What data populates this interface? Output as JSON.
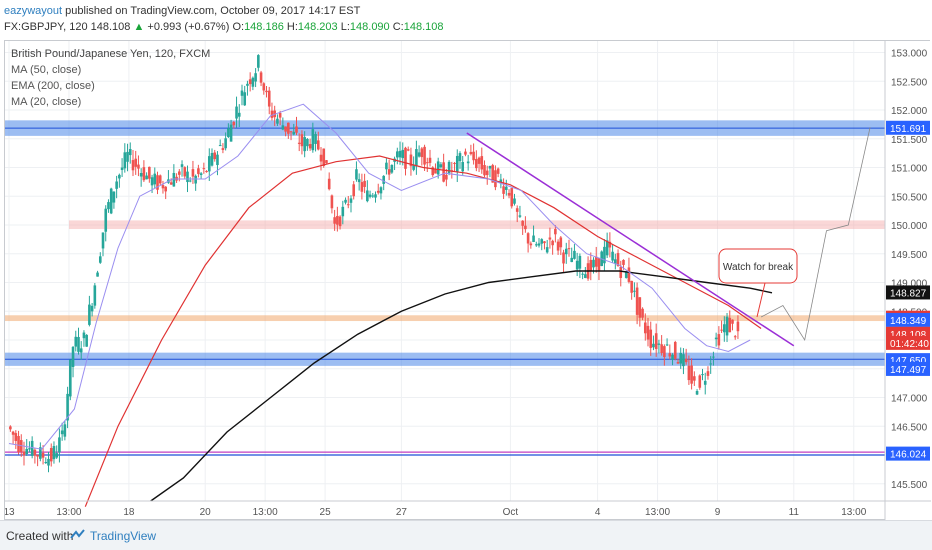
{
  "header": {
    "author": "eazywayout",
    "published": "published on TradingView.com, October 09, 2017 14:17 EST",
    "symbol": "FX:GBPJPY, 120",
    "last": "148.108",
    "change_arrow": "▲",
    "change": "+0.993 (+0.67%)",
    "open_label": "O:",
    "open": "148.186",
    "high_label": "H:",
    "high": "148.203",
    "low_label": "L:",
    "low": "148.090",
    "close_label": "C:",
    "close": "148.108"
  },
  "legend": {
    "title": "British Pound/Japanese Yen, 120, FXCM",
    "ma50": "MA (50, close)",
    "ema200": "EMA (200, close)",
    "ma20": "MA (20, close)"
  },
  "annotation": "Watch for break",
  "footer": {
    "created": "Created with",
    "brand": "TradingView"
  },
  "colors": {
    "up": "#26a69a",
    "down": "#ef5350",
    "ma50": "#e03232",
    "ema200": "#111111",
    "ma20": "#9a8ef0",
    "trendline": "#9b2fd6",
    "blue_zone": "#4a86e8",
    "pink_zone": "#f4a7a7",
    "orange_zone": "#f0a060",
    "purple_line": "#c23fc2"
  },
  "chart_data": {
    "type": "candlestick",
    "title": "British Pound/Japanese Yen, 120, FXCM",
    "ylim": [
      145.2,
      153.2
    ],
    "y_ticks": [
      "145.500",
      "146.000",
      "146.500",
      "147.000",
      "147.500",
      "148.000",
      "148.500",
      "149.000",
      "149.500",
      "150.000",
      "150.500",
      "151.000",
      "151.500",
      "152.000",
      "152.500",
      "153.000"
    ],
    "x_ticks": [
      {
        "label": "13",
        "x": 0
      },
      {
        "label": "13:00",
        "x": 5.5
      },
      {
        "label": "18",
        "x": 11
      },
      {
        "label": "20",
        "x": 18
      },
      {
        "label": "13:00",
        "x": 23.5
      },
      {
        "label": "25",
        "x": 29
      },
      {
        "label": "27",
        "x": 36
      },
      {
        "label": "Oct",
        "x": 46
      },
      {
        "label": "4",
        "x": 54
      },
      {
        "label": "13:00",
        "x": 59.5
      },
      {
        "label": "9",
        "x": 65
      },
      {
        "label": "11",
        "x": 72
      },
      {
        "label": "13:00",
        "x": 77.5
      }
    ],
    "price_labels": [
      {
        "value": "151.691",
        "y": 151.691,
        "color": "#2962ff"
      },
      {
        "value": "148.827",
        "y": 148.827,
        "color": "#111111"
      },
      {
        "value": "148.388",
        "y": 148.388,
        "color": "#e53935"
      },
      {
        "value": "148.349",
        "y": 148.349,
        "color": "#2962ff"
      },
      {
        "value": "148.108",
        "y": 148.108,
        "color": "#e53935"
      },
      {
        "value": "01:42:40",
        "y": 147.95,
        "color": "#e53935"
      },
      {
        "value": "147.650",
        "y": 147.65,
        "color": "#2962ff"
      },
      {
        "value": "147.497",
        "y": 147.497,
        "color": "#2962ff"
      },
      {
        "value": "146.024",
        "y": 146.024,
        "color": "#2962ff"
      }
    ],
    "zones": [
      {
        "from": 151.55,
        "to": 151.82,
        "kind": "blue"
      },
      {
        "from": 147.55,
        "to": 147.78,
        "kind": "blue"
      },
      {
        "from": 149.93,
        "to": 150.08,
        "kind": "pink"
      },
      {
        "from": 148.33,
        "to": 148.43,
        "kind": "orange"
      }
    ],
    "hlines": [
      {
        "y": 146.05,
        "kind": "purple"
      },
      {
        "y": 146.0,
        "kind": "blue"
      }
    ],
    "close_path": [
      [
        0,
        146.5
      ],
      [
        1,
        146.2
      ],
      [
        2,
        146.1
      ],
      [
        3,
        146.0
      ],
      [
        4,
        145.95
      ],
      [
        5,
        146.3
      ],
      [
        6,
        147.9
      ],
      [
        7,
        148.0
      ],
      [
        8,
        149.0
      ],
      [
        9,
        150.2
      ],
      [
        10,
        150.8
      ],
      [
        11,
        151.2
      ],
      [
        12,
        151.0
      ],
      [
        13,
        150.8
      ],
      [
        14,
        150.7
      ],
      [
        15,
        150.8
      ],
      [
        16,
        150.9
      ],
      [
        17,
        150.8
      ],
      [
        18,
        150.9
      ],
      [
        19,
        151.2
      ],
      [
        20,
        151.5
      ],
      [
        21,
        152.0
      ],
      [
        22,
        152.5
      ],
      [
        23,
        152.8
      ],
      [
        24,
        152.0
      ],
      [
        25,
        151.8
      ],
      [
        26,
        151.6
      ],
      [
        27,
        151.4
      ],
      [
        28,
        151.5
      ],
      [
        29,
        151.2
      ],
      [
        30,
        150.0
      ],
      [
        31,
        150.3
      ],
      [
        32,
        150.8
      ],
      [
        33,
        150.5
      ],
      [
        34,
        150.7
      ],
      [
        35,
        151.0
      ],
      [
        36,
        151.2
      ],
      [
        37,
        151.1
      ],
      [
        38,
        151.3
      ],
      [
        39,
        151.0
      ],
      [
        40,
        150.9
      ],
      [
        41,
        151.0
      ],
      [
        42,
        151.2
      ],
      [
        43,
        151.1
      ],
      [
        44,
        150.9
      ],
      [
        45,
        150.8
      ],
      [
        46,
        150.6
      ],
      [
        47,
        150.0
      ],
      [
        48,
        149.7
      ],
      [
        49,
        149.6
      ],
      [
        50,
        149.8
      ],
      [
        51,
        149.5
      ],
      [
        52,
        149.4
      ],
      [
        53,
        149.2
      ],
      [
        54,
        149.3
      ],
      [
        55,
        149.6
      ],
      [
        56,
        149.3
      ],
      [
        57,
        149.1
      ],
      [
        58,
        148.4
      ],
      [
        59,
        148.0
      ],
      [
        60,
        147.9
      ],
      [
        61,
        147.8
      ],
      [
        62,
        147.6
      ],
      [
        63,
        147.2
      ],
      [
        64,
        147.4
      ],
      [
        65,
        148.0
      ],
      [
        66,
        148.3
      ],
      [
        67,
        148.1
      ]
    ],
    "series": [
      {
        "name": "MA (50, close)",
        "points": [
          [
            7,
            145.1
          ],
          [
            10,
            146.5
          ],
          [
            14,
            148.0
          ],
          [
            18,
            149.3
          ],
          [
            22,
            150.3
          ],
          [
            26,
            150.9
          ],
          [
            30,
            151.1
          ],
          [
            34,
            151.2
          ],
          [
            38,
            151.0
          ],
          [
            42,
            150.9
          ],
          [
            46,
            150.7
          ],
          [
            50,
            150.3
          ],
          [
            54,
            149.8
          ],
          [
            58,
            149.4
          ],
          [
            62,
            149.0
          ],
          [
            66,
            148.6
          ],
          [
            69,
            148.2
          ]
        ]
      },
      {
        "name": "EMA (200, close)",
        "points": [
          [
            13,
            145.2
          ],
          [
            16,
            145.6
          ],
          [
            20,
            146.4
          ],
          [
            24,
            147.0
          ],
          [
            28,
            147.6
          ],
          [
            32,
            148.1
          ],
          [
            36,
            148.5
          ],
          [
            40,
            148.8
          ],
          [
            44,
            149.0
          ],
          [
            48,
            149.1
          ],
          [
            52,
            149.2
          ],
          [
            56,
            149.2
          ],
          [
            60,
            149.1
          ],
          [
            64,
            149.0
          ],
          [
            68,
            148.9
          ],
          [
            70,
            148.82
          ]
        ]
      },
      {
        "name": "MA (20, close)",
        "points": [
          [
            0,
            146.2
          ],
          [
            3,
            146.1
          ],
          [
            6,
            146.8
          ],
          [
            8,
            148.3
          ],
          [
            10,
            149.6
          ],
          [
            12,
            150.5
          ],
          [
            15,
            150.8
          ],
          [
            18,
            150.8
          ],
          [
            21,
            151.2
          ],
          [
            24,
            151.9
          ],
          [
            27,
            152.1
          ],
          [
            30,
            151.6
          ],
          [
            33,
            150.9
          ],
          [
            36,
            150.6
          ],
          [
            40,
            150.9
          ],
          [
            44,
            150.8
          ],
          [
            47,
            150.6
          ],
          [
            50,
            150.0
          ],
          [
            53,
            149.5
          ],
          [
            56,
            149.3
          ],
          [
            59,
            148.9
          ],
          [
            62,
            148.2
          ],
          [
            64,
            147.9
          ],
          [
            66,
            147.8
          ],
          [
            68,
            148.0
          ]
        ]
      }
    ],
    "trendline": [
      [
        42,
        151.6
      ],
      [
        72,
        147.9
      ]
    ],
    "projection": [
      [
        69,
        148.4
      ],
      [
        71,
        148.6
      ],
      [
        73,
        148.0
      ],
      [
        75,
        149.9
      ],
      [
        77,
        150.0
      ],
      [
        79,
        151.7
      ]
    ]
  }
}
